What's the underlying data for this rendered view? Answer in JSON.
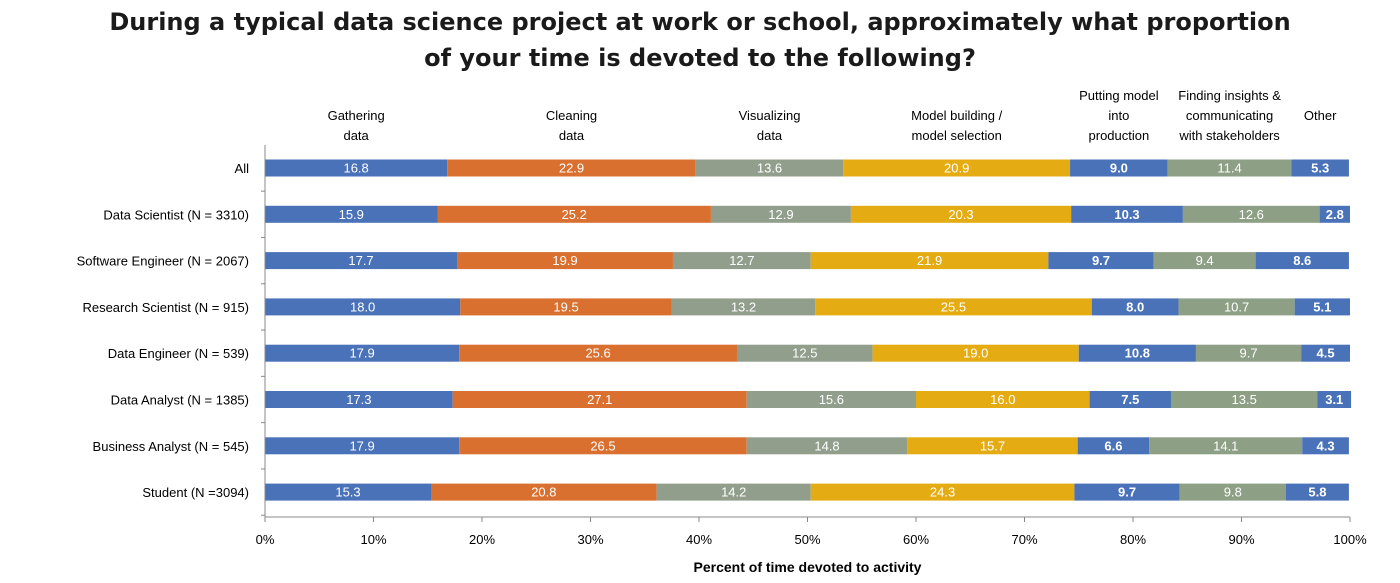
{
  "chart_data": {
    "type": "bar",
    "orientation": "horizontal",
    "stacked": true,
    "title_lines": [
      "During a typical data science project at work or school, approximately what proportion",
      "of your time is devoted to the following?"
    ],
    "xlabel": "Percent of time devoted to activity",
    "ylabel": "",
    "xlim": [
      0,
      100
    ],
    "x_ticks": [
      "0%",
      "10%",
      "20%",
      "30%",
      "40%",
      "50%",
      "60%",
      "70%",
      "80%",
      "90%",
      "100%"
    ],
    "categories": [
      "All",
      "Data Scientist (N = 3310)",
      "Software Engineer (N = 2067)",
      "Research Scientist (N = 915)",
      "Data Engineer (N = 539)",
      "Data Analyst (N = 1385)",
      "Business Analyst (N = 545)",
      "Student (N =3094)"
    ],
    "series": [
      {
        "name": "Gathering data",
        "name_lines": [
          "Gathering",
          "data"
        ],
        "color": "#4a72b8",
        "label_bold": false,
        "values": [
          16.8,
          15.9,
          17.7,
          18.0,
          17.9,
          17.3,
          17.9,
          15.3
        ]
      },
      {
        "name": "Cleaning data",
        "name_lines": [
          "Cleaning",
          "data"
        ],
        "color": "#d9702f",
        "label_bold": false,
        "values": [
          22.9,
          25.2,
          19.9,
          19.5,
          25.6,
          27.1,
          26.5,
          20.8
        ]
      },
      {
        "name": "Visualizing data",
        "name_lines": [
          "Visualizing",
          "data"
        ],
        "color": "#929e8c",
        "label_bold": false,
        "values": [
          13.6,
          12.9,
          12.7,
          13.2,
          12.5,
          15.6,
          14.8,
          14.2
        ]
      },
      {
        "name": "Model building / model selection",
        "name_lines": [
          "Model building /",
          "model selection"
        ],
        "color": "#e4ac12",
        "label_bold": false,
        "values": [
          20.9,
          20.3,
          21.9,
          25.5,
          19.0,
          16.0,
          15.7,
          24.3
        ]
      },
      {
        "name": "Putting model into production",
        "name_lines": [
          "Putting model",
          "into",
          "production"
        ],
        "color": "#4a72b8",
        "label_bold": true,
        "values": [
          9.0,
          10.3,
          9.7,
          8.0,
          10.8,
          7.5,
          6.6,
          9.7
        ]
      },
      {
        "name": "Finding insights & communicating with stakeholders",
        "name_lines": [
          "Finding insights &",
          "communicating",
          "with stakeholders"
        ],
        "color": "#8d9f84",
        "label_bold": false,
        "values": [
          11.4,
          12.6,
          9.4,
          10.7,
          9.7,
          13.5,
          14.1,
          9.8
        ]
      },
      {
        "name": "Other",
        "name_lines": [
          "Other"
        ],
        "color": "#4a72b8",
        "label_bold": true,
        "values": [
          5.3,
          2.8,
          8.6,
          5.1,
          4.5,
          3.1,
          4.3,
          5.8
        ]
      }
    ],
    "grid": false,
    "legend": "top"
  }
}
